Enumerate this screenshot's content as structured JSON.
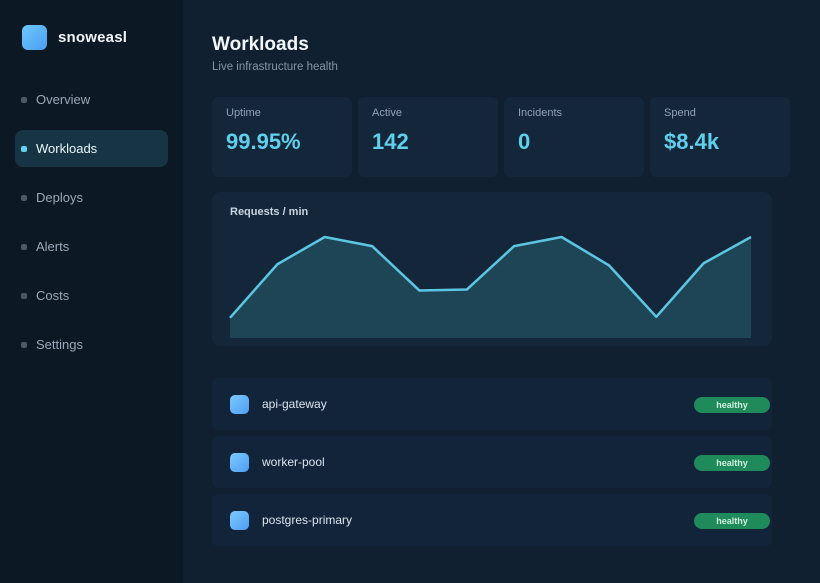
{
  "brand": {
    "name": "snoweasl"
  },
  "sidebar": {
    "items": [
      {
        "label": "Overview",
        "active": false
      },
      {
        "label": "Workloads",
        "active": true
      },
      {
        "label": "Deploys",
        "active": false
      },
      {
        "label": "Alerts",
        "active": false
      },
      {
        "label": "Costs",
        "active": false
      },
      {
        "label": "Settings",
        "active": false
      }
    ]
  },
  "header": {
    "title": "Workloads",
    "subtitle": "Live infrastructure health"
  },
  "stats": [
    {
      "label": "Uptime",
      "value": "99.95%"
    },
    {
      "label": "Active",
      "value": "142"
    },
    {
      "label": "Incidents",
      "value": "0"
    },
    {
      "label": "Spend",
      "value": "$8.4k"
    }
  ],
  "chart_data": {
    "type": "area",
    "title": "Requests / min",
    "xlabel": "",
    "ylabel": "",
    "grid": false,
    "legend": "none",
    "values": [
      20,
      73,
      100,
      91,
      47,
      48,
      91,
      100,
      72,
      21,
      74,
      100
    ],
    "ylim": [
      0,
      100
    ],
    "colors": {
      "line": "#5cc6e2",
      "fill": "#1e4556"
    }
  },
  "workloads": [
    {
      "name": "api-gateway",
      "status": "healthy"
    },
    {
      "name": "worker-pool",
      "status": "healthy"
    },
    {
      "name": "postgres-primary",
      "status": "healthy"
    }
  ],
  "colors": {
    "accent": "#5fd0ec",
    "healthy": "#1f8b5b",
    "background": "#102031"
  }
}
